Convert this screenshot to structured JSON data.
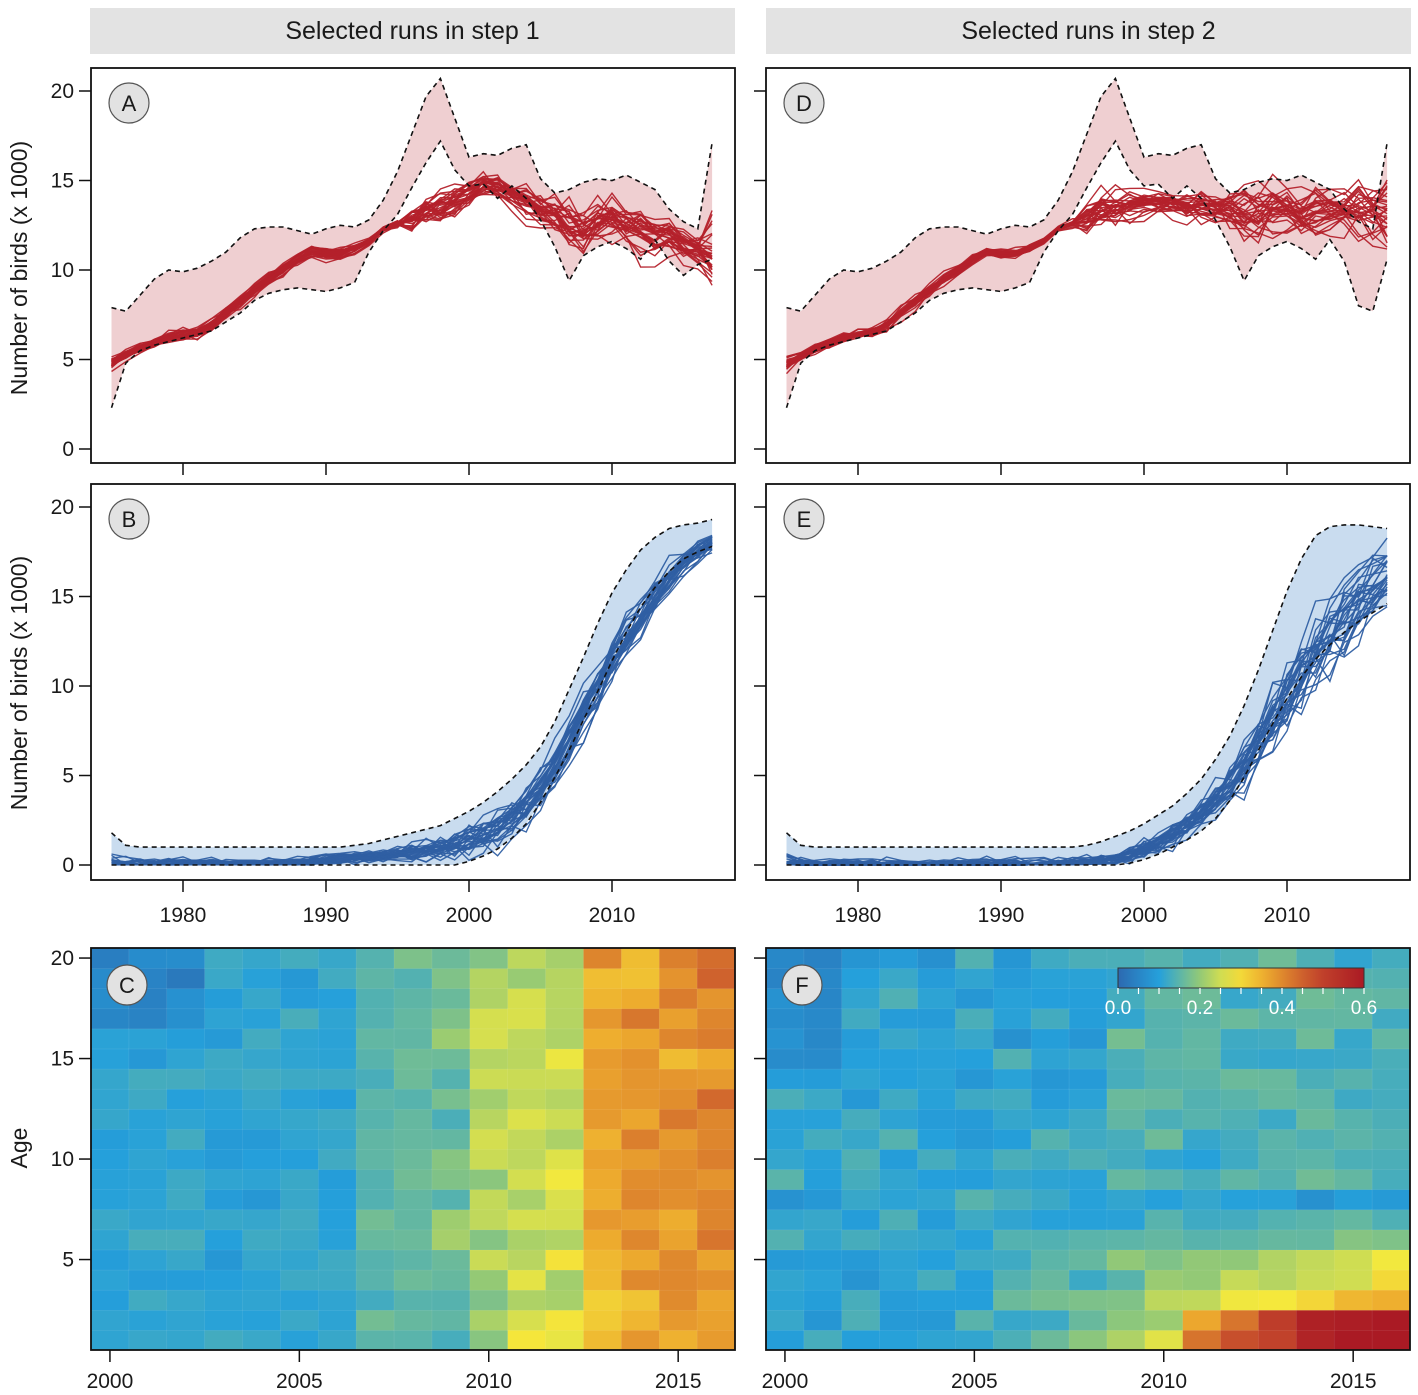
{
  "strips": {
    "left": "Selected runs in step 1",
    "right": "Selected runs in step 2"
  },
  "axis": {
    "ylabel_count": "Number of birds (x 1000)",
    "ylabel_age": "Age",
    "year_ticks_ts": [
      "1980",
      "1990",
      "2000",
      "2010"
    ],
    "year_ticks_hm": [
      "2000",
      "2005",
      "2010",
      "2015"
    ],
    "count_ticks": [
      "0",
      "5",
      "10",
      "15",
      "20"
    ],
    "age_ticks": [
      "5",
      "10",
      "15",
      "20"
    ]
  },
  "colors": {
    "red": "#b4212b",
    "red_band": "#efcfd1",
    "blue": "#2f5fa3",
    "blue_band": "#c9dcef"
  },
  "panels": {
    "A": "A",
    "B": "B",
    "C": "C",
    "D": "D",
    "E": "E",
    "F": "F"
  },
  "legend": {
    "ticks": [
      "0.0",
      "0.2",
      "0.4",
      "0.6"
    ],
    "min": 0.0,
    "max": 0.6
  },
  "chart_data": [
    {
      "id": "A",
      "type": "line",
      "title": "Selected runs in step 1",
      "xlabel": "",
      "ylabel": "Number of birds (x 1000)",
      "xlim": [
        1975,
        2017
      ],
      "ylim": [
        0,
        21
      ],
      "x": [
        1975,
        1976,
        1977,
        1978,
        1979,
        1980,
        1981,
        1982,
        1983,
        1984,
        1985,
        1986,
        1987,
        1988,
        1989,
        1990,
        1991,
        1992,
        1993,
        1994,
        1995,
        1996,
        1997,
        1998,
        1999,
        2000,
        2001,
        2002,
        2003,
        2004,
        2005,
        2006,
        2007,
        2008,
        2009,
        2010,
        2011,
        2012,
        2013,
        2014,
        2015,
        2016,
        2017
      ],
      "band_upper": [
        7.9,
        7.7,
        8.6,
        9.5,
        10.0,
        9.9,
        10.1,
        10.5,
        11.0,
        11.8,
        12.3,
        12.4,
        12.4,
        12.2,
        12.0,
        12.3,
        12.5,
        12.4,
        12.8,
        13.9,
        15.5,
        17.6,
        19.7,
        20.7,
        18.5,
        16.3,
        16.5,
        16.4,
        16.8,
        17.0,
        15.1,
        14.3,
        14.5,
        14.9,
        15.1,
        15.0,
        15.3,
        14.9,
        14.5,
        13.4,
        12.7,
        12.3,
        17.1
      ],
      "band_lower": [
        2.3,
        4.8,
        5.5,
        5.8,
        6.0,
        6.2,
        6.4,
        6.6,
        7.1,
        7.6,
        8.3,
        8.7,
        8.9,
        9.0,
        8.9,
        8.8,
        9.0,
        9.3,
        11.0,
        12.2,
        13.1,
        14.6,
        16.0,
        17.2,
        15.6,
        14.7,
        14.8,
        14.0,
        14.7,
        14.0,
        12.8,
        11.3,
        9.4,
        10.8,
        11.3,
        11.6,
        11.2,
        10.6,
        11.7,
        10.5,
        9.7,
        10.3,
        10.6
      ],
      "center": [
        4.8,
        5.2,
        5.6,
        5.9,
        6.2,
        6.4,
        6.5,
        6.9,
        7.6,
        8.2,
        8.9,
        9.5,
        10.0,
        10.6,
        11.0,
        10.9,
        10.9,
        11.2,
        11.6,
        12.3,
        12.6,
        12.9,
        13.3,
        13.5,
        13.9,
        14.3,
        14.8,
        14.8,
        14.2,
        13.9,
        13.4,
        13.1,
        12.6,
        12.2,
        12.7,
        12.9,
        12.5,
        12.2,
        11.8,
        11.9,
        11.4,
        11.1,
        11.0
      ],
      "n_runs": 30,
      "series_color": "#b4212b"
    },
    {
      "id": "B",
      "type": "line",
      "title": "",
      "xlabel": "",
      "ylabel": "Number of birds (x 1000)",
      "xlim": [
        1975,
        2017
      ],
      "ylim": [
        0,
        21
      ],
      "x": [
        1975,
        1976,
        1977,
        1978,
        1979,
        1980,
        1981,
        1982,
        1983,
        1984,
        1985,
        1986,
        1987,
        1988,
        1989,
        1990,
        1991,
        1992,
        1993,
        1994,
        1995,
        1996,
        1997,
        1998,
        1999,
        2000,
        2001,
        2002,
        2003,
        2004,
        2005,
        2006,
        2007,
        2008,
        2009,
        2010,
        2011,
        2012,
        2013,
        2014,
        2015,
        2016,
        2017
      ],
      "band_upper": [
        1.8,
        1.1,
        1.0,
        1.0,
        1.0,
        1.0,
        1.0,
        1.0,
        1.0,
        1.0,
        1.0,
        1.0,
        1.0,
        1.0,
        1.0,
        1.0,
        1.0,
        1.1,
        1.2,
        1.4,
        1.6,
        1.8,
        2.0,
        2.2,
        2.6,
        3.0,
        3.5,
        4.1,
        4.8,
        5.6,
        6.6,
        8.0,
        9.8,
        11.6,
        13.5,
        15.2,
        16.5,
        17.6,
        18.3,
        18.8,
        19.0,
        19.1,
        19.3
      ],
      "band_lower": [
        0,
        0,
        0,
        0,
        0,
        0,
        0,
        0,
        0,
        0,
        0,
        0,
        0,
        0,
        0,
        0,
        0,
        0,
        0,
        0,
        0,
        0,
        0,
        0,
        0,
        0.2,
        0.5,
        0.9,
        1.5,
        2.3,
        3.5,
        4.9,
        6.4,
        8.1,
        9.7,
        11.4,
        13.0,
        14.4,
        15.5,
        16.4,
        17.1,
        17.5,
        17.8
      ],
      "center": [
        0.1,
        0.05,
        0.05,
        0.05,
        0.05,
        0.05,
        0.05,
        0.05,
        0.05,
        0.05,
        0.05,
        0.1,
        0.1,
        0.15,
        0.2,
        0.3,
        0.35,
        0.4,
        0.45,
        0.5,
        0.6,
        0.7,
        0.8,
        0.9,
        1.1,
        1.3,
        1.6,
        2.0,
        2.6,
        3.3,
        4.3,
        5.6,
        7.1,
        8.6,
        10.0,
        11.4,
        12.6,
        13.8,
        14.9,
        15.9,
        16.8,
        17.5,
        18.0
      ],
      "n_runs": 30,
      "series_color": "#2f5fa3"
    },
    {
      "id": "C",
      "type": "heatmap",
      "title": "",
      "xlabel": "",
      "ylabel": "Age",
      "xlim": [
        2000,
        2016
      ],
      "ylim": [
        1,
        20
      ],
      "x_range": [
        1999.5,
        2016.5
      ],
      "y_range": [
        0.5,
        20.5
      ],
      "color_scale": {
        "min": 0.0,
        "max": 0.6
      },
      "values_description": "grid of 17 years (2000-2016) by 20 ages (1-20), values roughly 0.05-0.45"
    },
    {
      "id": "D",
      "type": "line",
      "title": "Selected runs in step 2",
      "xlabel": "",
      "ylabel": "Number of birds (x 1000)",
      "xlim": [
        1975,
        2017
      ],
      "ylim": [
        0,
        21
      ],
      "x": [
        1975,
        1976,
        1977,
        1978,
        1979,
        1980,
        1981,
        1982,
        1983,
        1984,
        1985,
        1986,
        1987,
        1988,
        1989,
        1990,
        1991,
        1992,
        1993,
        1994,
        1995,
        1996,
        1997,
        1998,
        1999,
        2000,
        2001,
        2002,
        2003,
        2004,
        2005,
        2006,
        2007,
        2008,
        2009,
        2010,
        2011,
        2012,
        2013,
        2014,
        2015,
        2016,
        2017
      ],
      "band_upper": [
        7.9,
        7.7,
        8.6,
        9.5,
        10.0,
        9.9,
        10.1,
        10.5,
        11.0,
        11.8,
        12.3,
        12.4,
        12.4,
        12.2,
        12.0,
        12.3,
        12.5,
        12.4,
        12.8,
        13.9,
        15.5,
        17.6,
        19.7,
        20.7,
        18.5,
        16.3,
        16.5,
        16.4,
        16.8,
        17.0,
        15.1,
        14.3,
        14.5,
        14.9,
        15.1,
        15.0,
        15.3,
        14.9,
        14.5,
        13.4,
        12.7,
        12.3,
        17.1
      ],
      "band_lower": [
        2.3,
        4.8,
        5.5,
        5.8,
        6.0,
        6.2,
        6.4,
        6.6,
        7.1,
        7.6,
        8.3,
        8.7,
        8.9,
        9.0,
        8.9,
        8.8,
        9.0,
        9.3,
        11.0,
        12.2,
        13.1,
        14.6,
        16.0,
        17.2,
        15.6,
        14.7,
        14.8,
        14.0,
        14.7,
        14.0,
        12.8,
        11.3,
        9.4,
        10.8,
        11.3,
        11.6,
        11.2,
        10.6,
        11.7,
        10.5,
        8.0,
        7.7,
        10.6
      ],
      "center": [
        4.8,
        5.2,
        5.6,
        5.9,
        6.2,
        6.4,
        6.5,
        6.9,
        7.6,
        8.2,
        8.9,
        9.5,
        10.0,
        10.6,
        11.0,
        10.9,
        10.9,
        11.2,
        11.6,
        12.3,
        12.6,
        12.9,
        13.3,
        13.5,
        13.6,
        13.7,
        13.8,
        13.7,
        13.5,
        13.5,
        13.4,
        13.3,
        13.3,
        13.2,
        13.4,
        13.4,
        13.3,
        13.4,
        13.5,
        13.4,
        13.4,
        13.4,
        13.3
      ],
      "n_runs": 30,
      "series_color": "#b4212b"
    },
    {
      "id": "E",
      "type": "line",
      "title": "",
      "xlabel": "",
      "ylabel": "",
      "xlim": [
        1975,
        2017
      ],
      "ylim": [
        0,
        21
      ],
      "x": [
        1975,
        1976,
        1977,
        1978,
        1979,
        1980,
        1981,
        1982,
        1983,
        1984,
        1985,
        1986,
        1987,
        1988,
        1989,
        1990,
        1991,
        1992,
        1993,
        1994,
        1995,
        1996,
        1997,
        1998,
        1999,
        2000,
        2001,
        2002,
        2003,
        2004,
        2005,
        2006,
        2007,
        2008,
        2009,
        2010,
        2011,
        2012,
        2013,
        2014,
        2015,
        2016,
        2017
      ],
      "band_upper": [
        1.8,
        1.1,
        1.0,
        1.0,
        1.0,
        1.0,
        1.0,
        1.0,
        1.0,
        1.0,
        1.0,
        1.0,
        1.0,
        1.0,
        1.0,
        1.0,
        1.0,
        1.0,
        1.0,
        1.0,
        1.0,
        1.1,
        1.3,
        1.6,
        1.9,
        2.3,
        2.8,
        3.3,
        4.0,
        4.8,
        5.9,
        7.2,
        8.9,
        10.9,
        13.1,
        15.3,
        17.1,
        18.4,
        18.9,
        19.0,
        19.0,
        18.9,
        18.8
      ],
      "band_lower": [
        0,
        0,
        0,
        0,
        0,
        0,
        0,
        0,
        0,
        0,
        0,
        0,
        0,
        0,
        0,
        0,
        0,
        0,
        0,
        0,
        0,
        0,
        0,
        0,
        0.1,
        0.3,
        0.6,
        1.0,
        1.4,
        1.9,
        2.6,
        3.6,
        4.9,
        6.4,
        7.9,
        9.3,
        10.5,
        11.5,
        12.3,
        13.0,
        13.6,
        14.1,
        14.6
      ],
      "center": [
        0.05,
        0.02,
        0.02,
        0.02,
        0.02,
        0.02,
        0.02,
        0.02,
        0.02,
        0.02,
        0.02,
        0.02,
        0.02,
        0.02,
        0.02,
        0.02,
        0.02,
        0.03,
        0.05,
        0.08,
        0.1,
        0.15,
        0.2,
        0.3,
        0.5,
        0.8,
        1.2,
        1.7,
        2.2,
        2.8,
        3.5,
        4.4,
        5.5,
        6.8,
        8.1,
        9.4,
        10.7,
        11.9,
        13.0,
        14.0,
        14.9,
        15.6,
        16.2
      ],
      "n_runs": 30,
      "series_color": "#2f5fa3"
    },
    {
      "id": "F",
      "type": "heatmap",
      "title": "",
      "xlabel": "",
      "ylabel": "",
      "xlim": [
        2000,
        2016
      ],
      "ylim": [
        1,
        20
      ],
      "x_range": [
        1999.5,
        2016.5
      ],
      "y_range": [
        0.5,
        20.5
      ],
      "color_scale": {
        "min": 0.0,
        "max": 0.6
      },
      "values_description": "grid of 17 years (2000-2016) by 20 ages (1-20), values roughly 0.05-0.6"
    }
  ]
}
